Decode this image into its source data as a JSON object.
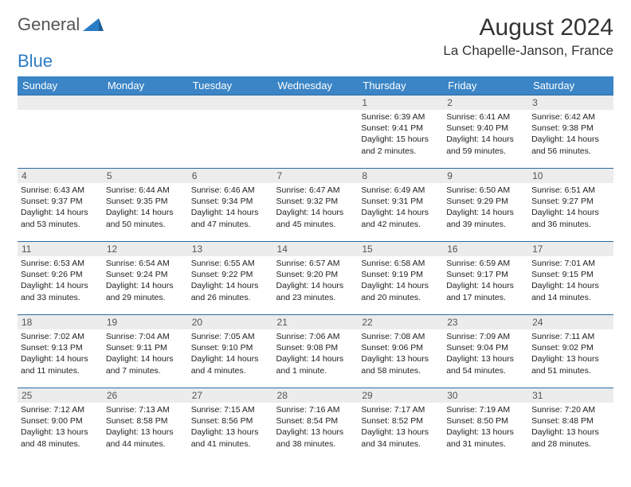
{
  "brand": {
    "name1": "General",
    "name2": "Blue"
  },
  "header": {
    "title": "August 2024",
    "location": "La Chapelle-Janson, France"
  },
  "colors": {
    "header_bg": "#3b85c6",
    "row_border": "#2a6ca5",
    "daynum_bg": "#ececec",
    "brand_blue": "#2a7cc7"
  },
  "weekdays": [
    "Sunday",
    "Monday",
    "Tuesday",
    "Wednesday",
    "Thursday",
    "Friday",
    "Saturday"
  ],
  "first_weekday_index": 4,
  "days": [
    {
      "n": 1,
      "sunrise": "6:39 AM",
      "sunset": "9:41 PM",
      "daylight": "15 hours and 2 minutes."
    },
    {
      "n": 2,
      "sunrise": "6:41 AM",
      "sunset": "9:40 PM",
      "daylight": "14 hours and 59 minutes."
    },
    {
      "n": 3,
      "sunrise": "6:42 AM",
      "sunset": "9:38 PM",
      "daylight": "14 hours and 56 minutes."
    },
    {
      "n": 4,
      "sunrise": "6:43 AM",
      "sunset": "9:37 PM",
      "daylight": "14 hours and 53 minutes."
    },
    {
      "n": 5,
      "sunrise": "6:44 AM",
      "sunset": "9:35 PM",
      "daylight": "14 hours and 50 minutes."
    },
    {
      "n": 6,
      "sunrise": "6:46 AM",
      "sunset": "9:34 PM",
      "daylight": "14 hours and 47 minutes."
    },
    {
      "n": 7,
      "sunrise": "6:47 AM",
      "sunset": "9:32 PM",
      "daylight": "14 hours and 45 minutes."
    },
    {
      "n": 8,
      "sunrise": "6:49 AM",
      "sunset": "9:31 PM",
      "daylight": "14 hours and 42 minutes."
    },
    {
      "n": 9,
      "sunrise": "6:50 AM",
      "sunset": "9:29 PM",
      "daylight": "14 hours and 39 minutes."
    },
    {
      "n": 10,
      "sunrise": "6:51 AM",
      "sunset": "9:27 PM",
      "daylight": "14 hours and 36 minutes."
    },
    {
      "n": 11,
      "sunrise": "6:53 AM",
      "sunset": "9:26 PM",
      "daylight": "14 hours and 33 minutes."
    },
    {
      "n": 12,
      "sunrise": "6:54 AM",
      "sunset": "9:24 PM",
      "daylight": "14 hours and 29 minutes."
    },
    {
      "n": 13,
      "sunrise": "6:55 AM",
      "sunset": "9:22 PM",
      "daylight": "14 hours and 26 minutes."
    },
    {
      "n": 14,
      "sunrise": "6:57 AM",
      "sunset": "9:20 PM",
      "daylight": "14 hours and 23 minutes."
    },
    {
      "n": 15,
      "sunrise": "6:58 AM",
      "sunset": "9:19 PM",
      "daylight": "14 hours and 20 minutes."
    },
    {
      "n": 16,
      "sunrise": "6:59 AM",
      "sunset": "9:17 PM",
      "daylight": "14 hours and 17 minutes."
    },
    {
      "n": 17,
      "sunrise": "7:01 AM",
      "sunset": "9:15 PM",
      "daylight": "14 hours and 14 minutes."
    },
    {
      "n": 18,
      "sunrise": "7:02 AM",
      "sunset": "9:13 PM",
      "daylight": "14 hours and 11 minutes."
    },
    {
      "n": 19,
      "sunrise": "7:04 AM",
      "sunset": "9:11 PM",
      "daylight": "14 hours and 7 minutes."
    },
    {
      "n": 20,
      "sunrise": "7:05 AM",
      "sunset": "9:10 PM",
      "daylight": "14 hours and 4 minutes."
    },
    {
      "n": 21,
      "sunrise": "7:06 AM",
      "sunset": "9:08 PM",
      "daylight": "14 hours and 1 minute."
    },
    {
      "n": 22,
      "sunrise": "7:08 AM",
      "sunset": "9:06 PM",
      "daylight": "13 hours and 58 minutes."
    },
    {
      "n": 23,
      "sunrise": "7:09 AM",
      "sunset": "9:04 PM",
      "daylight": "13 hours and 54 minutes."
    },
    {
      "n": 24,
      "sunrise": "7:11 AM",
      "sunset": "9:02 PM",
      "daylight": "13 hours and 51 minutes."
    },
    {
      "n": 25,
      "sunrise": "7:12 AM",
      "sunset": "9:00 PM",
      "daylight": "13 hours and 48 minutes."
    },
    {
      "n": 26,
      "sunrise": "7:13 AM",
      "sunset": "8:58 PM",
      "daylight": "13 hours and 44 minutes."
    },
    {
      "n": 27,
      "sunrise": "7:15 AM",
      "sunset": "8:56 PM",
      "daylight": "13 hours and 41 minutes."
    },
    {
      "n": 28,
      "sunrise": "7:16 AM",
      "sunset": "8:54 PM",
      "daylight": "13 hours and 38 minutes."
    },
    {
      "n": 29,
      "sunrise": "7:17 AM",
      "sunset": "8:52 PM",
      "daylight": "13 hours and 34 minutes."
    },
    {
      "n": 30,
      "sunrise": "7:19 AM",
      "sunset": "8:50 PM",
      "daylight": "13 hours and 31 minutes."
    },
    {
      "n": 31,
      "sunrise": "7:20 AM",
      "sunset": "8:48 PM",
      "daylight": "13 hours and 28 minutes."
    }
  ],
  "labels": {
    "sunrise": "Sunrise:",
    "sunset": "Sunset:",
    "daylight": "Daylight:"
  }
}
